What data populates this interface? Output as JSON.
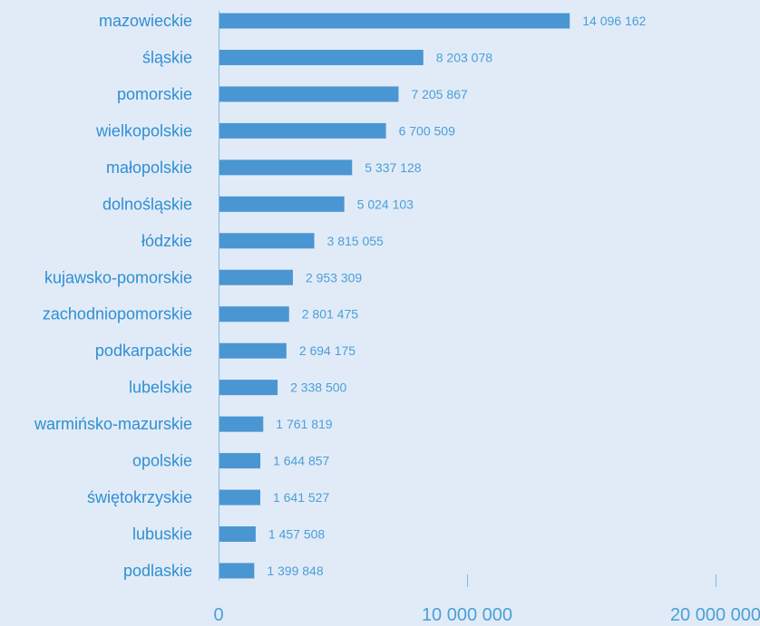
{
  "colors": {
    "background": "#e1ebf7",
    "bar": "#4a96d3",
    "label_text": "#2f8fd3",
    "value_text": "#4a9fd9",
    "axis": "#7fb8e4"
  },
  "chart_data": {
    "type": "bar",
    "orientation": "horizontal",
    "title": "",
    "xlabel": "",
    "ylabel": "",
    "grid": false,
    "xlim": [
      0,
      20000000
    ],
    "x_ticks": [
      {
        "value": 0,
        "label": "0"
      },
      {
        "value": 10000000,
        "label": "10 000 000"
      },
      {
        "value": 20000000,
        "label": "20 000 000"
      }
    ],
    "categories": [
      "mazowieckie",
      "śląskie",
      "pomorskie",
      "wielkopolskie",
      "małopolskie",
      "dolnośląskie",
      "łódzkie",
      "kujawsko-pomorskie",
      "zachodniopomorskie",
      "podkarpackie",
      "lubelskie",
      "warmińsko-mazurskie",
      "opolskie",
      "świętokrzyskie",
      "lubuskie",
      "podlaskie"
    ],
    "values": [
      14096162,
      8203078,
      7205867,
      6700509,
      5337128,
      5024103,
      3815055,
      2953309,
      2801475,
      2694175,
      2338500,
      1761819,
      1644857,
      1641527,
      1457508,
      1399848
    ],
    "value_labels": [
      "14 096 162",
      "8 203 078",
      "7 205 867",
      "6 700 509",
      "5 337 128",
      "5 024 103",
      "3 815 055",
      "2 953 309",
      "2 801 475",
      "2 694 175",
      "2 338 500",
      "1 761 819",
      "1 644 857",
      "1 641 527",
      "1 457 508",
      "1 399 848"
    ]
  }
}
